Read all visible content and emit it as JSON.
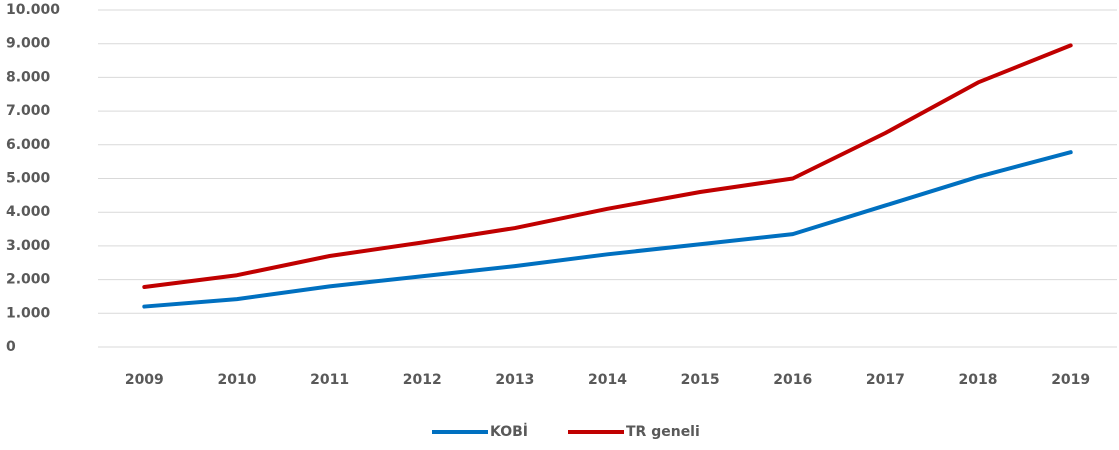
{
  "chart_data": {
    "type": "line",
    "categories": [
      "2009",
      "2010",
      "2011",
      "2012",
      "2013",
      "2014",
      "2015",
      "2016",
      "2017",
      "2018",
      "2019"
    ],
    "series": [
      {
        "name": "KOBİ",
        "color": "#0070c0",
        "values": [
          1200,
          1420,
          1800,
          2100,
          2400,
          2750,
          3050,
          3350,
          4200,
          5050,
          5780
        ]
      },
      {
        "name": "TR geneli",
        "color": "#c00000",
        "values": [
          1780,
          2130,
          2700,
          3100,
          3530,
          4100,
          4600,
          5000,
          6350,
          7850,
          8950
        ]
      }
    ],
    "ylim": [
      0,
      10000
    ],
    "yticks": [
      0,
      {
        "value": 1000,
        "label": "1.000"
      },
      {
        "value": 2000,
        "label": "2.000"
      },
      {
        "value": 3000,
        "label": "3.000"
      },
      {
        "value": 4000,
        "label": "4.000"
      },
      {
        "value": 5000,
        "label": "5.000"
      },
      {
        "value": 6000,
        "label": "6.000"
      },
      {
        "value": 7000,
        "label": "7.000"
      },
      {
        "value": 8000,
        "label": "8.000"
      },
      {
        "value": 9000,
        "label": "9.000"
      },
      {
        "value": 10000,
        "label": "10.000"
      }
    ],
    "grid": true,
    "legend": "bottom"
  }
}
